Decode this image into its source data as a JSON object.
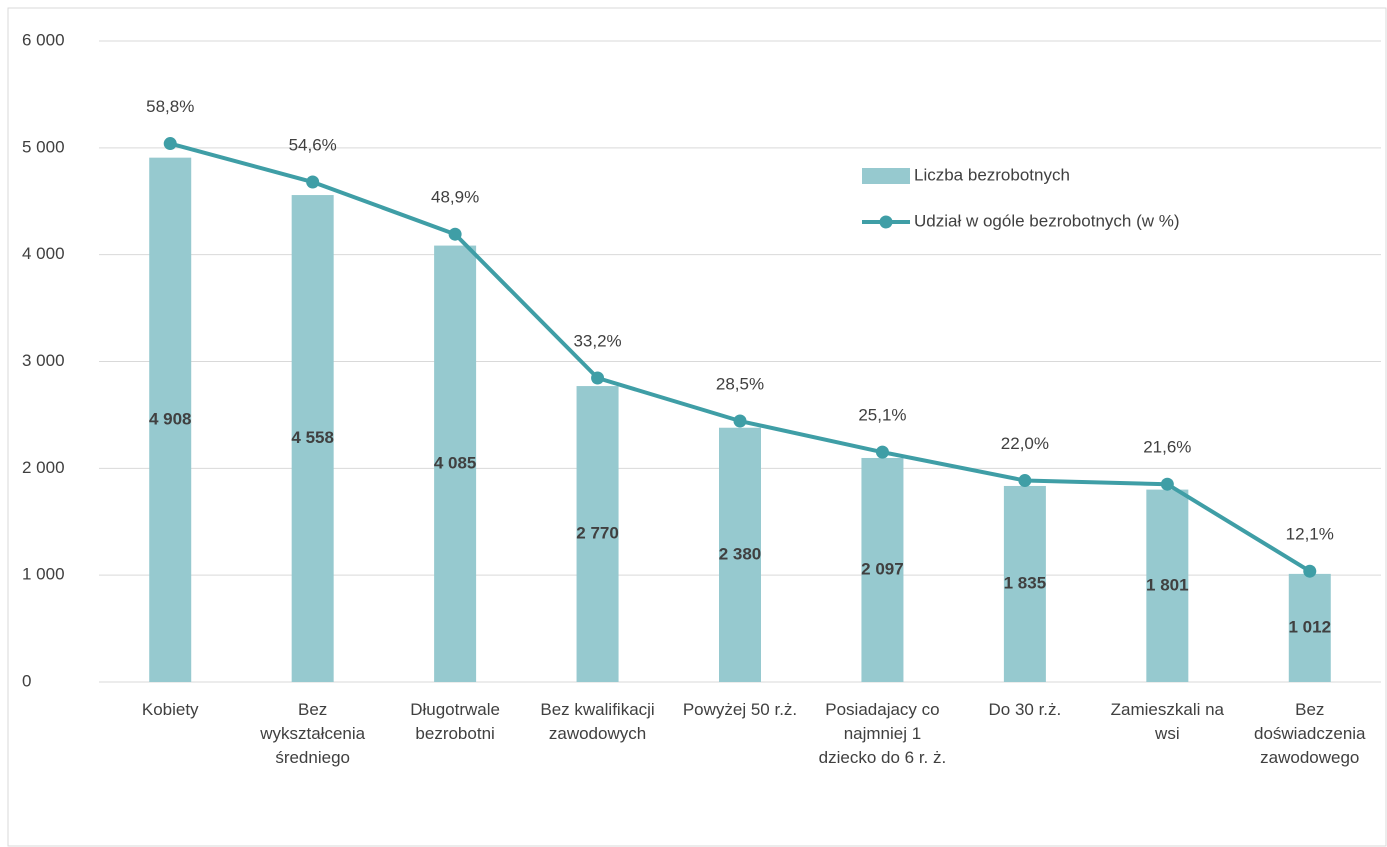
{
  "chart_data": {
    "type": "bar",
    "categories": [
      "Kobiety",
      "Bez wykształcenia średniego",
      "Długotrwale bezrobotni",
      "Bez kwalifikacji zawodowych",
      "Powyżej 50 r.ż.",
      "Posiadajacy co najmniej 1 dziecko do 6 r. ż.",
      "Do 30 r.ż.",
      "Zamieszkali na wsi",
      "Bez doświadczenia zawodowego"
    ],
    "series": [
      {
        "name": "Liczba bezrobotnych",
        "type": "bar",
        "color": "#96c9cf",
        "values": [
          4908,
          4558,
          4085,
          2770,
          2380,
          2097,
          1835,
          1801,
          1012
        ],
        "value_labels": [
          "4 908",
          "4 558",
          "4 085",
          "2 770",
          "2 380",
          "2 097",
          "1 835",
          "1 801",
          "1 012"
        ]
      },
      {
        "name": "Udział w ogóle bezrobotnych (w %)",
        "type": "line",
        "axis": "y2",
        "color": "#3f9ea6",
        "values": [
          58.8,
          54.6,
          48.9,
          33.2,
          28.5,
          25.1,
          22.0,
          21.6,
          12.1
        ],
        "value_labels": [
          "58,8%",
          "54,6%",
          "48,9%",
          "33,2%",
          "28,5%",
          "25,1%",
          "22,0%",
          "21,6%",
          "12,1%"
        ]
      }
    ],
    "ylim": [
      0,
      6000
    ],
    "yticks": [
      0,
      {
        "value": 1000,
        "label": "1 000"
      },
      {
        "value": 2000,
        "label": "2 000"
      },
      {
        "value": 3000,
        "label": "3 000"
      },
      {
        "value": 4000,
        "label": "4 000"
      },
      {
        "value": 5000,
        "label": "5 000"
      },
      {
        "value": 6000,
        "label": "6 000"
      }
    ],
    "y2lim": [
      0,
      70
    ],
    "grid": true,
    "legend": "upper right"
  }
}
